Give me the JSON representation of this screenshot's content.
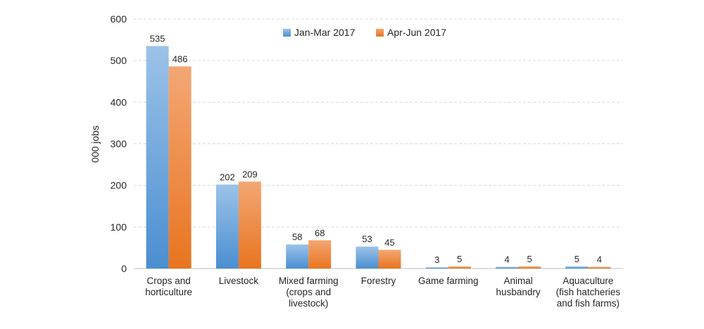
{
  "chart_data": {
    "type": "bar",
    "title": "",
    "xlabel": "",
    "ylabel": "000 jobs",
    "ylim": [
      0,
      600
    ],
    "yticks": [
      0,
      100,
      200,
      300,
      400,
      500,
      600
    ],
    "grid": true,
    "legend_position": "top",
    "categories": [
      [
        "Crops and",
        "horticulture"
      ],
      [
        "Livestock"
      ],
      [
        "Mixed farming",
        "(crops and",
        "livestock)"
      ],
      [
        "Forestry"
      ],
      [
        "Game farming"
      ],
      [
        "Animal",
        "husbandry"
      ],
      [
        "Aquaculture",
        "(fish hatcheries",
        "and fish farms)"
      ]
    ],
    "series": [
      {
        "name": "Jan-Mar 2017",
        "color": "#5b9bd5",
        "values": [
          535,
          202,
          58,
          53,
          3,
          4,
          5
        ]
      },
      {
        "name": "Apr-Jun 2017",
        "color": "#ed7d31",
        "values": [
          486,
          209,
          68,
          45,
          5,
          5,
          4
        ]
      }
    ]
  }
}
